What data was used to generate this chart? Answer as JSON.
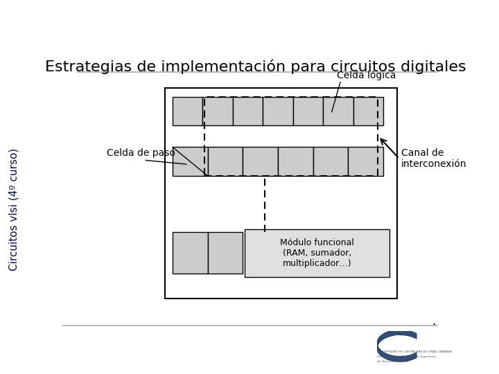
{
  "title": "Estrategias de implementación para circuitos digitales",
  "title_fontsize": 16,
  "title_color": "#000000",
  "background_color": "#ffffff",
  "sidebar_text": "Circuitos vlsi (4º curso)",
  "sidebar_color": "#00008B",
  "cell_fill": "#cccccc",
  "cell_edge": "#000000",
  "label_celda_logica": "Celda lógica",
  "label_celda_paso": "Celda de paso",
  "label_canal": "Canal de\ninterconexión",
  "label_modulo": "Módulo funcional\n(RAM, sumador,\nmultiplicador…)",
  "logo_color": "#1a3a6b"
}
